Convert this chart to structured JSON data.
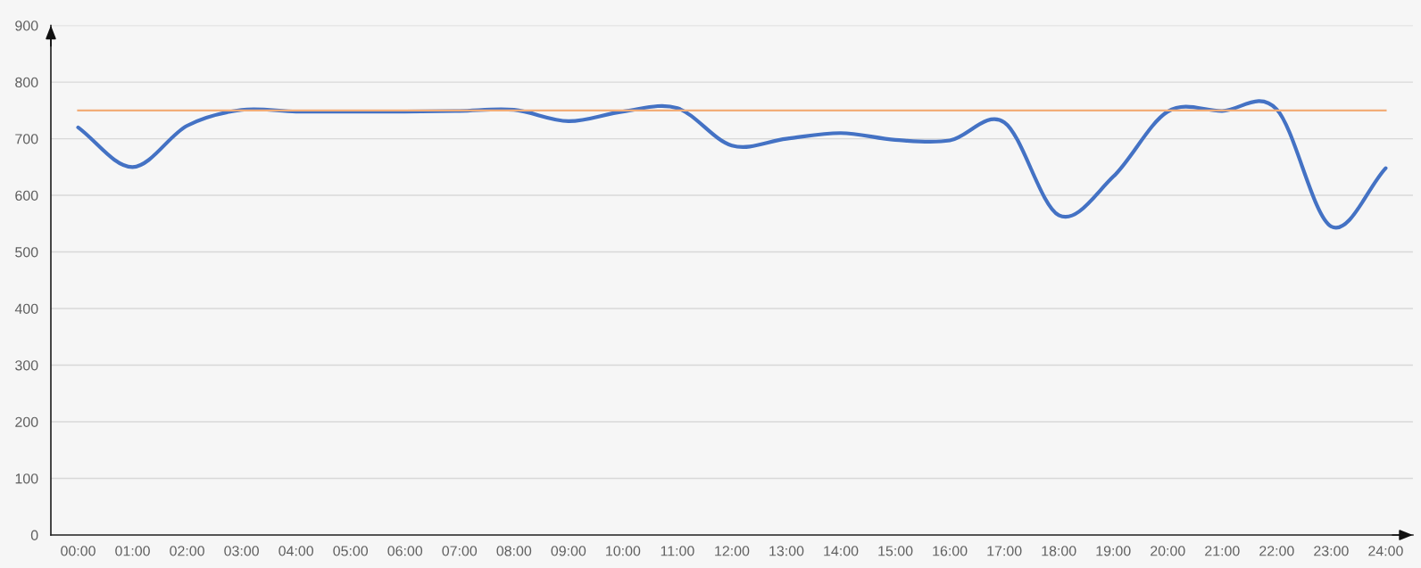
{
  "chart_data": {
    "type": "line",
    "categories": [
      "00:00",
      "01:00",
      "02:00",
      "03:00",
      "04:00",
      "05:00",
      "06:00",
      "07:00",
      "08:00",
      "09:00",
      "10:00",
      "11:00",
      "12:00",
      "13:00",
      "14:00",
      "15:00",
      "16:00",
      "17:00",
      "18:00",
      "19:00",
      "20:00",
      "21:00",
      "22:00",
      "23:00",
      "24:00"
    ],
    "series": [
      {
        "color": "#4472c4",
        "values": [
          720,
          650,
          723,
          751,
          748,
          748,
          748,
          749,
          751,
          731,
          748,
          754,
          688,
          700,
          710,
          698,
          697,
          729,
          565,
          633,
          748,
          749,
          752,
          545,
          648
        ]
      }
    ],
    "ref_lines": [
      {
        "axis": "y",
        "value": 750,
        "color": "#f2ad78"
      }
    ],
    "ylim": [
      0,
      900
    ],
    "yticks": [
      0,
      100,
      200,
      300,
      400,
      500,
      600,
      700,
      800,
      900
    ],
    "grid": "y",
    "marker": "none",
    "line_style": "solid"
  }
}
